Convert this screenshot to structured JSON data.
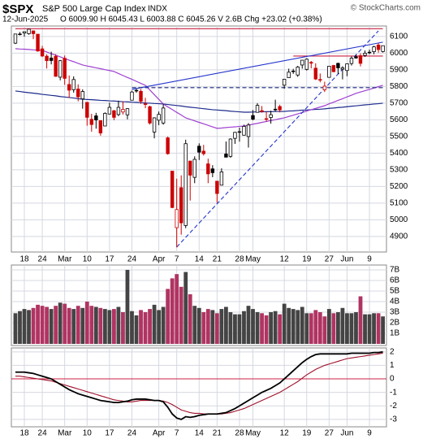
{
  "chart_data": {
    "type": "candlestick",
    "title": "$SPX",
    "subtitle": "S&P 500 Large Cap Index",
    "exchange": "INDX",
    "date": "12-Jun-2025",
    "quote": "O 6009.90  H 6045.43  L 6003.88  C 6045.26  V 2.6B  Chg +23.02 (+0.38%)",
    "credit": "© StockCharts.com",
    "categories": [
      null,
      null,
      "18",
      null,
      null,
      null,
      "24",
      null,
      null,
      null,
      null,
      "Mar",
      null,
      null,
      null,
      null,
      "10",
      null,
      null,
      null,
      null,
      "17",
      null,
      null,
      null,
      null,
      "24",
      null,
      null,
      null,
      null,
      null,
      "Apr",
      null,
      null,
      null,
      "7",
      null,
      null,
      null,
      null,
      "14",
      null,
      null,
      null,
      "21",
      null,
      null,
      null,
      null,
      "28",
      null,
      null,
      "May",
      null,
      null,
      null,
      null,
      null,
      null,
      "12",
      null,
      null,
      null,
      null,
      "19",
      null,
      null,
      null,
      null,
      "27",
      null,
      null,
      null,
      "Jun",
      null,
      null,
      null,
      null,
      "9",
      null,
      null,
      null
    ],
    "open": [
      6060,
      6115,
      6121,
      6117,
      6134,
      6114,
      6026,
      5982,
      5971,
      5981,
      5856,
      5969,
      5812,
      5781,
      5785,
      5726,
      5705,
      5603,
      5624,
      5595,
      5563,
      5635,
      5655,
      5632,
      5647,
      5630,
      5718,
      5776,
      5771,
      5696,
      5679,
      5527,
      5598,
      5581,
      5492,
      5292,
      4953,
      5193,
      4966,
      5353,
      5255,
      5442,
      5412,
      5336,
      5306,
      5232,
      5208,
      5395,
      5381,
      5489,
      5529,
      5508,
      5500,
      5626,
      5645,
      5655,
      5605,
      5614,
      5663,
      5680,
      5808,
      5853,
      5893,
      5869,
      5929,
      5903,
      5945,
      5910,
      5842,
      5781,
      5855,
      5926,
      5939,
      5904,
      5896,
      5938,
      5978,
      5985,
      5987,
      6005,
      6009,
      6049,
      6010
    ],
    "high": [
      6116,
      6127,
      6129,
      6147,
      6134,
      6114,
      6044,
      5993,
      6009,
      5994,
      5959,
      5986,
      5866,
      5861,
      5813,
      5783,
      5705,
      5636,
      5642,
      5597,
      5645,
      5703,
      5659,
      5715,
      5711,
      5670,
      5775,
      5787,
      5785,
      5732,
      5685,
      5615,
      5650,
      5696,
      5500,
      5293,
      5247,
      5267,
      5481,
      5353,
      5381,
      5459,
      5450,
      5367,
      5328,
      5232,
      5309,
      5470,
      5489,
      5528,
      5553,
      5571,
      5581,
      5659,
      5700,
      5683,
      5649,
      5655,
      5721,
      5691,
      5845,
      5907,
      5906,
      5924,
      5958,
      5969,
      5953,
      5939,
      5878,
      5829,
      5924,
      5930,
      5943,
      5922,
      5937,
      5981,
      5991,
      5999,
      6016,
      6021,
      6044,
      6060,
      6045
    ],
    "low": [
      6055,
      6107,
      6099,
      6111,
      6084,
      6009,
      5977,
      5908,
      5933,
      5858,
      5837,
      5810,
      5732,
      5763,
      5711,
      5667,
      5565,
      5529,
      5547,
      5505,
      5563,
      5632,
      5598,
      5622,
      5632,
      5603,
      5718,
      5763,
      5696,
      5670,
      5572,
      5489,
      5568,
      5571,
      5391,
      5070,
      4835,
      4911,
      4950,
      5116,
      5220,
      5359,
      5386,
      5220,
      5256,
      5102,
      5208,
      5375,
      5372,
      5456,
      5469,
      5506,
      5434,
      5597,
      5644,
      5643,
      5590,
      5577,
      5650,
      5645,
      5787,
      5853,
      5876,
      5858,
      5907,
      5896,
      5909,
      5839,
      5825,
      5767,
      5855,
      5886,
      5875,
      5843,
      5862,
      5926,
      5967,
      5921,
      5978,
      5994,
      5993,
      6003,
      6004
    ],
    "close": [
      6115,
      6115,
      6129,
      6144,
      6117,
      6013,
      5983,
      5955,
      5956,
      5861,
      5955,
      5849,
      5778,
      5842,
      5738,
      5770,
      5615,
      5572,
      5599,
      5521,
      5639,
      5675,
      5615,
      5675,
      5663,
      5667,
      5767,
      5777,
      5712,
      5693,
      5581,
      5612,
      5633,
      5671,
      5397,
      5074,
      5062,
      4982,
      5457,
      5268,
      5363,
      5406,
      5397,
      5276,
      5283,
      5158,
      5288,
      5376,
      5485,
      5525,
      5529,
      5561,
      5569,
      5604,
      5687,
      5650,
      5607,
      5631,
      5664,
      5660,
      5844,
      5886,
      5892,
      5917,
      5958,
      5964,
      5940,
      5845,
      5842,
      5802,
      5922,
      5889,
      5912,
      5912,
      5936,
      5970,
      5971,
      5939,
      6000,
      6006,
      6038,
      6022,
      6045
    ],
    "up_color": "#000000",
    "down_color": "#cc0000",
    "ylim": [
      4807,
      6163
    ],
    "yticks": [
      4900,
      5000,
      5100,
      5200,
      5300,
      5400,
      5500,
      5600,
      5700,
      5800,
      5900,
      6000,
      6100
    ],
    "grid": true,
    "moving_averages": [
      {
        "color": "#1c2a8c",
        "values": [
          5773,
          5770,
          5766,
          5763,
          5760,
          5757,
          5753,
          5750,
          5747,
          5744,
          5740,
          5737,
          5734,
          5731,
          5727,
          5724,
          5722,
          5721,
          5719,
          5717,
          5716,
          5714,
          5713,
          5711,
          5709,
          5708,
          5706,
          5705,
          5703,
          5701,
          5700,
          5698,
          5697,
          5695,
          5692,
          5689,
          5686,
          5683,
          5679,
          5676,
          5673,
          5670,
          5667,
          5664,
          5661,
          5659,
          5657,
          5655,
          5652,
          5650,
          5648,
          5646,
          5646,
          5647,
          5648,
          5648,
          5649,
          5649,
          5650,
          5650,
          5651,
          5653,
          5654,
          5656,
          5658,
          5659,
          5661,
          5663,
          5664,
          5666,
          5669,
          5671,
          5674,
          5676,
          5679,
          5682,
          5684,
          5687,
          5690,
          5692,
          5695,
          5697,
          5700
        ]
      },
      {
        "color": "#a040d0",
        "values": [
          6027,
          6025,
          6024,
          6022,
          6020,
          6019,
          6017,
          6007,
          5997,
          5988,
          5978,
          5968,
          5958,
          5949,
          5939,
          5929,
          5923,
          5918,
          5912,
          5907,
          5901,
          5896,
          5890,
          5878,
          5866,
          5854,
          5843,
          5831,
          5819,
          5807,
          5779,
          5751,
          5723,
          5695,
          5678,
          5662,
          5645,
          5629,
          5612,
          5603,
          5594,
          5585,
          5576,
          5567,
          5558,
          5549,
          5551,
          5554,
          5556,
          5558,
          5561,
          5563,
          5568,
          5574,
          5579,
          5585,
          5590,
          5596,
          5601,
          5607,
          5612,
          5620,
          5628,
          5636,
          5644,
          5653,
          5661,
          5669,
          5677,
          5685,
          5696,
          5706,
          5717,
          5727,
          5738,
          5748,
          5759,
          5767,
          5775,
          5783,
          5791,
          5799,
          5807
        ]
      }
    ],
    "trendlines": [
      {
        "x": [
          0,
          82
        ],
        "values": [
          6147,
          6147
        ],
        "color": "#cc2244",
        "dash": false
      },
      {
        "x": [
          62,
          82
        ],
        "values": [
          5983,
          5983
        ],
        "color": "#cc2244",
        "dash": false
      },
      {
        "x": [
          26,
          82
        ],
        "values": [
          5783,
          6066
        ],
        "color": "#2233cc",
        "dash": false
      },
      {
        "x": [
          26,
          82
        ],
        "values": [
          5793,
          5793
        ],
        "color": "#1a237e",
        "dash": true
      },
      {
        "x": [
          36,
          81
        ],
        "values": [
          4837,
          6134
        ],
        "color": "#2233cc",
        "dash": true
      }
    ],
    "volume": {
      "values": [
        2.9,
        3.1,
        3.3,
        3.2,
        3.4,
        3.7,
        3.6,
        3.5,
        3.3,
        3.6,
        3.9,
        3.8,
        3.4,
        3.3,
        3.6,
        3.4,
        4.0,
        3.6,
        3.5,
        3.4,
        3.3,
        3.2,
        3.3,
        3.5,
        3.0,
        7.0,
        3.1,
        2.7,
        3.2,
        3.0,
        3.3,
        3.7,
        3.2,
        3.5,
        5.2,
        6.2,
        6.6,
        5.4,
        6.8,
        4.7,
        3.6,
        3.4,
        3.0,
        3.3,
        3.2,
        2.9,
        3.3,
        3.5,
        3.0,
        2.8,
        2.8,
        3.1,
        3.6,
        3.3,
        3.0,
        2.9,
        2.7,
        3.0,
        3.1,
        2.8,
        3.8,
        3.4,
        3.3,
        3.2,
        3.5,
        2.9,
        2.9,
        3.2,
        3.0,
        2.6,
        3.3,
        2.9,
        3.0,
        3.4,
        2.9,
        2.9,
        3.0,
        4.5,
        2.8,
        2.8,
        2.9,
        2.9,
        2.6
      ],
      "ylim": [
        0,
        7.46
      ],
      "yticks": [
        {
          "value": 1,
          "label": "1B"
        },
        {
          "value": 2,
          "label": "2B"
        },
        {
          "value": 3,
          "label": "3B"
        },
        {
          "value": 4,
          "label": "4B"
        },
        {
          "value": 5,
          "label": "5B"
        },
        {
          "value": 6,
          "label": "6B"
        },
        {
          "value": 7,
          "label": "7B"
        }
      ],
      "up_color": "#444444",
      "down_color": "#b03462"
    },
    "indicator": {
      "ylim": [
        -3.55,
        2.29
      ],
      "yticks": [
        -3,
        -2,
        -1,
        0,
        1,
        2
      ],
      "zero_line_color": "#cc2244",
      "series": [
        {
          "color": "#000000",
          "values": [
            0.5,
            0.5,
            0.5,
            0.45,
            0.4,
            0.3,
            0.2,
            0.1,
            0.0,
            -0.2,
            -0.4,
            -0.6,
            -0.8,
            -0.95,
            -1.1,
            -1.2,
            -1.3,
            -1.4,
            -1.5,
            -1.6,
            -1.65,
            -1.7,
            -1.75,
            -1.75,
            -1.7,
            -1.65,
            -1.55,
            -1.5,
            -1.5,
            -1.5,
            -1.55,
            -1.6,
            -1.6,
            -1.7,
            -2.1,
            -2.6,
            -2.9,
            -3.0,
            -2.8,
            -2.85,
            -2.8,
            -2.7,
            -2.65,
            -2.6,
            -2.6,
            -2.6,
            -2.55,
            -2.5,
            -2.35,
            -2.2,
            -2.0,
            -1.8,
            -1.6,
            -1.4,
            -1.2,
            -1.0,
            -0.85,
            -0.7,
            -0.5,
            -0.3,
            0.0,
            0.3,
            0.6,
            0.9,
            1.2,
            1.45,
            1.65,
            1.8,
            1.85,
            1.85,
            1.85,
            1.85,
            1.85,
            1.85,
            1.85,
            1.9,
            1.9,
            1.9,
            1.9,
            1.9,
            1.95,
            1.95,
            2.0
          ]
        },
        {
          "color": "#a0102a",
          "values": [
            0.2,
            0.2,
            0.15,
            0.1,
            0.05,
            0.0,
            -0.05,
            -0.1,
            -0.15,
            -0.25,
            -0.35,
            -0.45,
            -0.55,
            -0.65,
            -0.75,
            -0.85,
            -0.95,
            -1.05,
            -1.15,
            -1.25,
            -1.35,
            -1.45,
            -1.55,
            -1.6,
            -1.65,
            -1.7,
            -1.7,
            -1.65,
            -1.6,
            -1.6,
            -1.6,
            -1.6,
            -1.6,
            -1.65,
            -1.75,
            -1.9,
            -2.1,
            -2.3,
            -2.4,
            -2.5,
            -2.55,
            -2.55,
            -2.6,
            -2.6,
            -2.6,
            -2.6,
            -2.6,
            -2.55,
            -2.5,
            -2.4,
            -2.3,
            -2.2,
            -2.05,
            -1.9,
            -1.75,
            -1.6,
            -1.45,
            -1.3,
            -1.15,
            -1.0,
            -0.8,
            -0.6,
            -0.4,
            -0.2,
            0.05,
            0.3,
            0.5,
            0.7,
            0.85,
            1.0,
            1.1,
            1.2,
            1.3,
            1.4,
            1.5,
            1.55,
            1.6,
            1.65,
            1.7,
            1.75,
            1.8,
            1.85,
            1.9
          ]
        }
      ]
    }
  }
}
